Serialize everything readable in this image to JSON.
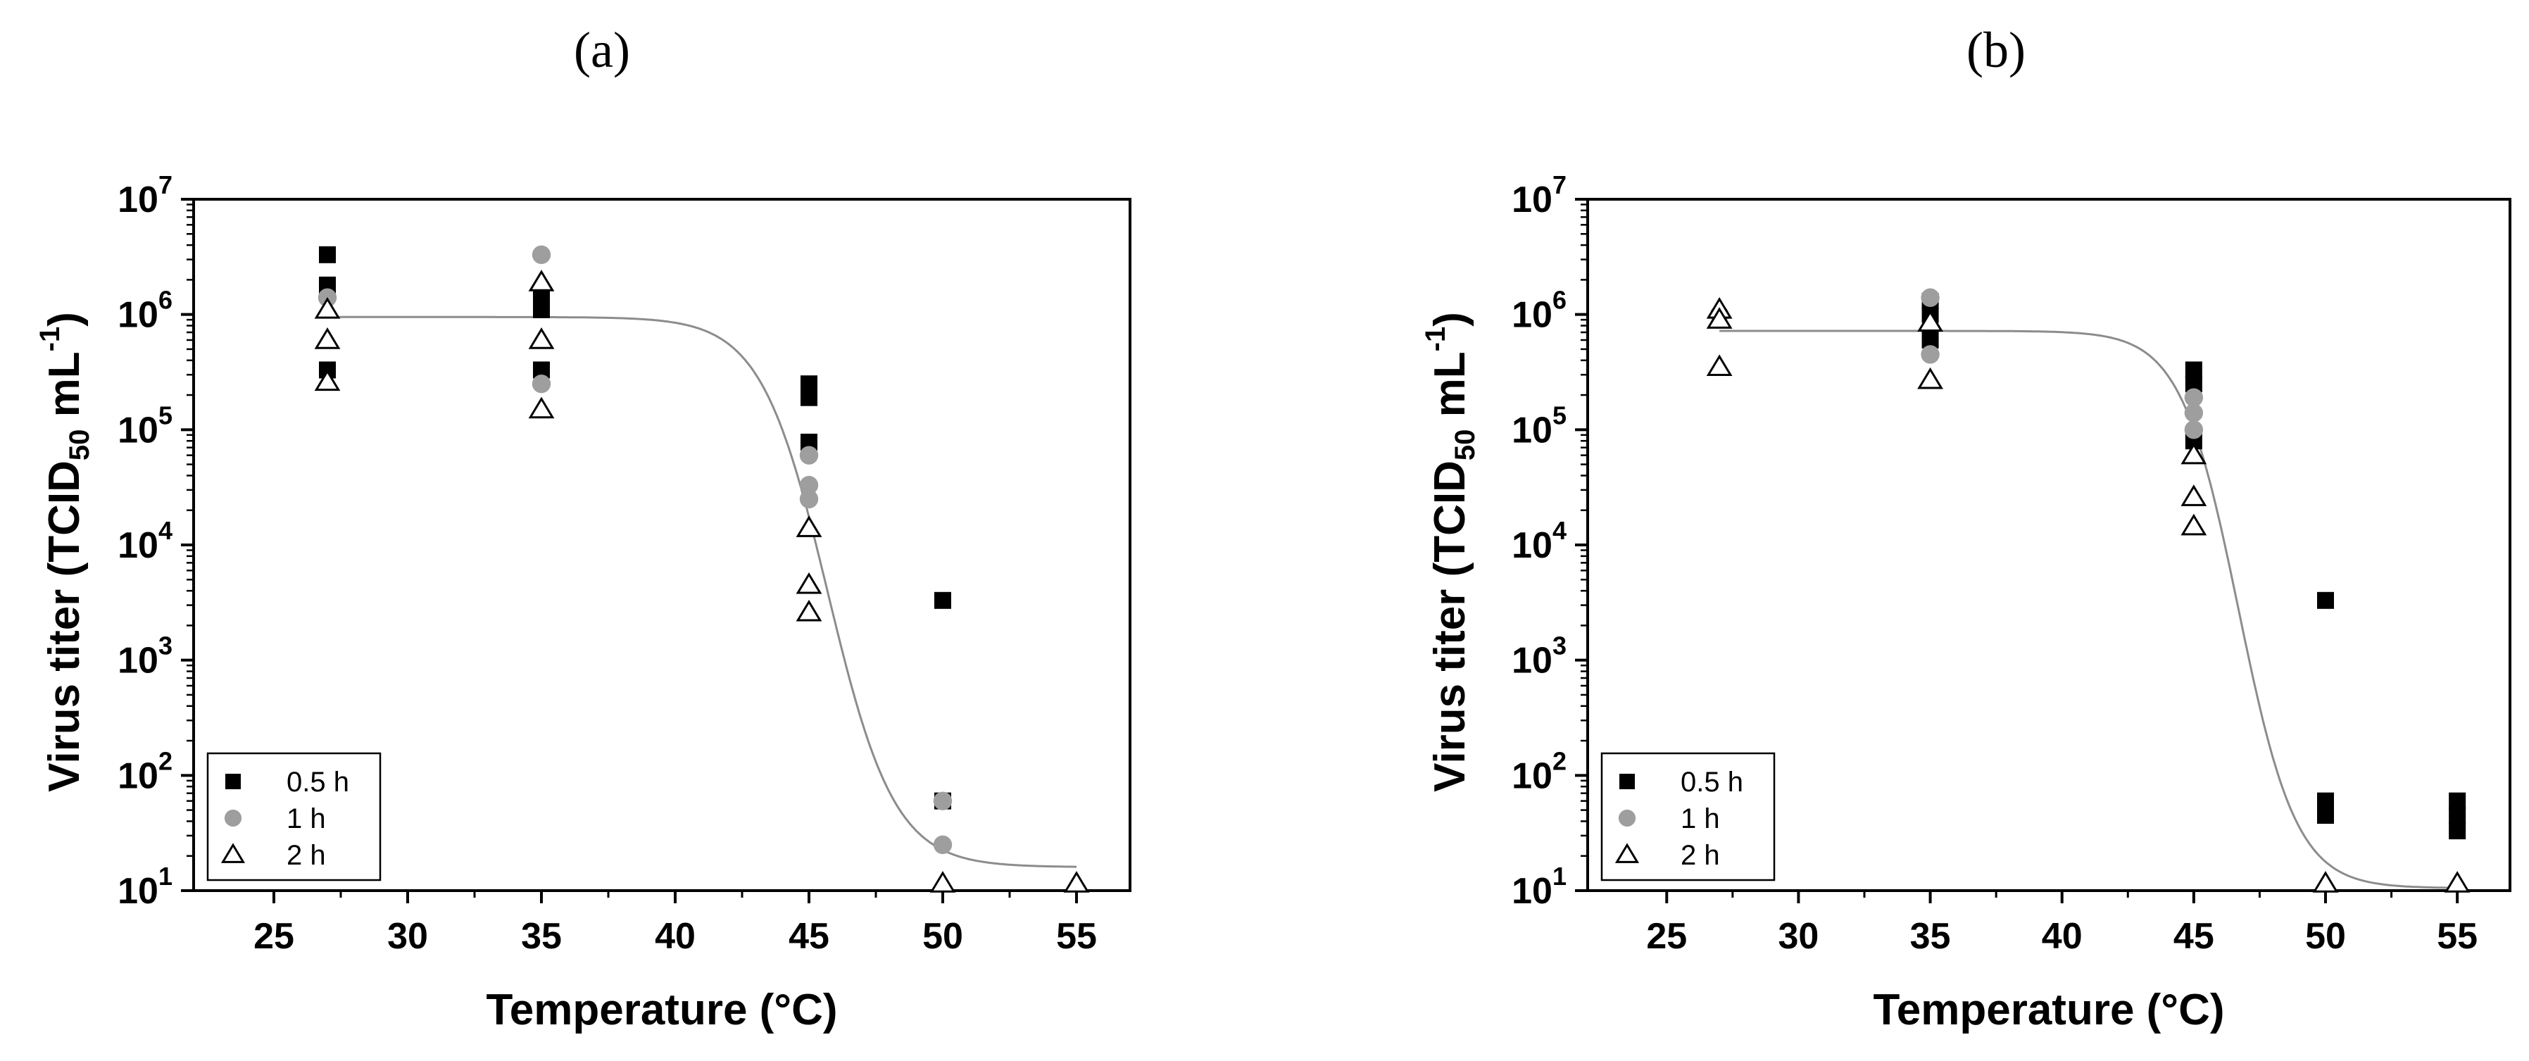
{
  "chart_data": [
    {
      "type": "scatter",
      "panel_label": "(a)",
      "xlabel": "Temperature  (°C)",
      "ylabel": {
        "main": "Virus titer  (TCID",
        "sub": "50",
        "unit": " mL",
        "sup": "-1",
        "close": ")"
      },
      "xlim": [
        22,
        57
      ],
      "ylim": [
        10,
        10000000
      ],
      "yscale": "log",
      "xticks": [
        25,
        30,
        35,
        40,
        45,
        50,
        55
      ],
      "yticks": [
        {
          "value": 10,
          "base": "10",
          "exp": "1"
        },
        {
          "value": 100,
          "base": "10",
          "exp": "2"
        },
        {
          "value": 1000,
          "base": "10",
          "exp": "3"
        },
        {
          "value": 10000,
          "base": "10",
          "exp": "4"
        },
        {
          "value": 100000,
          "base": "10",
          "exp": "5"
        },
        {
          "value": 1000000,
          "base": "10",
          "exp": "6"
        },
        {
          "value": 10000000,
          "base": "10",
          "exp": "7"
        }
      ],
      "legend": {
        "position": "bottom-left",
        "entries": [
          "0.5 h",
          "1 h",
          "2 h"
        ]
      },
      "series": [
        {
          "name": "0.5 h",
          "marker": "square",
          "color": "#000000",
          "points": [
            [
              27,
              3300000
            ],
            [
              27,
              1800000
            ],
            [
              27,
              330000
            ],
            [
              35,
              1400000
            ],
            [
              35,
              1100000
            ],
            [
              35,
              330000
            ],
            [
              45,
              250000
            ],
            [
              45,
              190000
            ],
            [
              45,
              78000
            ],
            [
              50,
              3300
            ],
            [
              50,
              60
            ]
          ]
        },
        {
          "name": "1 h",
          "marker": "circle",
          "color": "#9e9e9e",
          "points": [
            [
              27,
              1400000
            ],
            [
              35,
              3300000
            ],
            [
              35,
              250000
            ],
            [
              45,
              60000
            ],
            [
              45,
              33000
            ],
            [
              45,
              25000
            ],
            [
              50,
              60
            ],
            [
              50,
              25
            ]
          ]
        },
        {
          "name": "2 h",
          "marker": "triangle-open",
          "color": "#000000",
          "points": [
            [
              27,
              1100000
            ],
            [
              27,
              600000
            ],
            [
              27,
              260000
            ],
            [
              35,
              1900000
            ],
            [
              35,
              600000
            ],
            [
              35,
              150000
            ],
            [
              45,
              14000
            ],
            [
              45,
              4500
            ],
            [
              45,
              2600
            ],
            [
              50,
              11
            ],
            [
              55,
              11
            ]
          ]
        }
      ],
      "fit": {
        "color": "#8c8c8c",
        "top": 950000,
        "bottom": 16,
        "x0": 45.7,
        "k": 1.25
      }
    },
    {
      "type": "scatter",
      "panel_label": "(b)",
      "xlabel": "Temperature  (°C)",
      "ylabel": {
        "main": "Virus titer  (TCID",
        "sub": "50",
        "unit": " mL",
        "sup": "-1",
        "close": ")"
      },
      "xlim": [
        22,
        57
      ],
      "ylim": [
        10,
        10000000
      ],
      "yscale": "log",
      "xticks": [
        25,
        30,
        35,
        40,
        45,
        50,
        55
      ],
      "yticks": [
        {
          "value": 10,
          "base": "10",
          "exp": "1"
        },
        {
          "value": 100,
          "base": "10",
          "exp": "2"
        },
        {
          "value": 1000,
          "base": "10",
          "exp": "3"
        },
        {
          "value": 10000,
          "base": "10",
          "exp": "4"
        },
        {
          "value": 100000,
          "base": "10",
          "exp": "5"
        },
        {
          "value": 1000000,
          "base": "10",
          "exp": "6"
        },
        {
          "value": 10000000,
          "base": "10",
          "exp": "7"
        }
      ],
      "legend": {
        "position": "bottom-left",
        "entries": [
          "0.5 h",
          "1 h",
          "2 h"
        ]
      },
      "series": [
        {
          "name": "0.5 h",
          "marker": "square",
          "color": "#000000",
          "points": [
            [
              35,
              1300000
            ],
            [
              35,
              1000000
            ],
            [
              35,
              600000
            ],
            [
              45,
              330000
            ],
            [
              45,
              250000
            ],
            [
              45,
              80000
            ],
            [
              50,
              3300
            ],
            [
              50,
              60
            ],
            [
              50,
              45
            ],
            [
              55,
              60
            ],
            [
              55,
              45
            ],
            [
              55,
              33
            ]
          ]
        },
        {
          "name": "1 h",
          "marker": "circle",
          "color": "#9e9e9e",
          "points": [
            [
              27,
              1000000
            ],
            [
              35,
              1400000
            ],
            [
              35,
              450000
            ],
            [
              45,
              190000
            ],
            [
              45,
              140000
            ],
            [
              45,
              100000
            ]
          ]
        },
        {
          "name": "2 h",
          "marker": "triangle-open",
          "color": "#000000",
          "points": [
            [
              27,
              1100000
            ],
            [
              27,
              900000
            ],
            [
              27,
              350000
            ],
            [
              35,
              850000
            ],
            [
              35,
              270000
            ],
            [
              45,
              60000
            ],
            [
              45,
              26000
            ],
            [
              45,
              14500
            ],
            [
              50,
              11
            ],
            [
              55,
              11
            ]
          ]
        }
      ],
      "fit": {
        "color": "#8c8c8c",
        "top": 720000,
        "bottom": 10.5,
        "x0": 46.7,
        "k": 1.1
      }
    }
  ]
}
